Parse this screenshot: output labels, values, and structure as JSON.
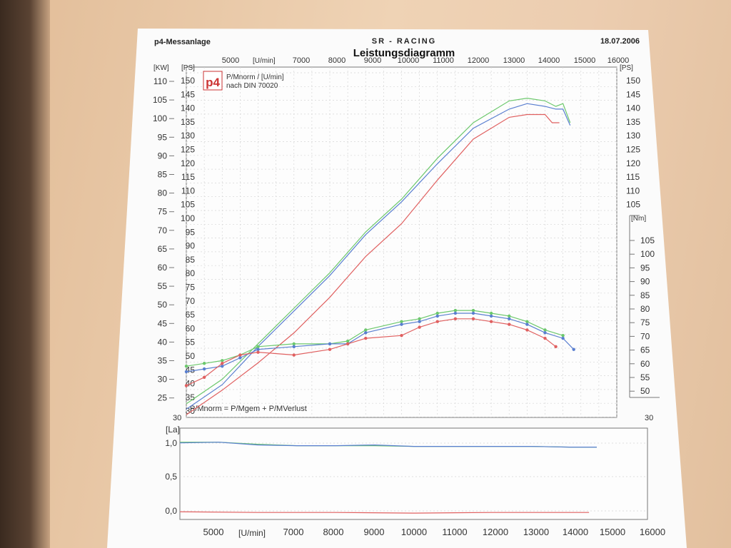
{
  "header": {
    "left": "p4-Messanlage",
    "center": "SR - RACING",
    "right": "18.07.2006",
    "title": "Leistungsdiagramm"
  },
  "logo": {
    "text": "p4"
  },
  "legend": {
    "line1": "P/Mnorm / [U/min]",
    "line2": "nach DIN 70020"
  },
  "formula": "P/Mnorm = P/Mgem + P/MVerlust",
  "axes": {
    "kw_unit": "[KW]",
    "ps_unit": "[PS]",
    "ps_right_unit": "[PS]",
    "nm_unit": "[Nm]",
    "rpm_unit": "[U/min]",
    "la_unit": "[La]",
    "corner_30": "30",
    "kw_ticks": [
      "110",
      "105",
      "100",
      "95",
      "90",
      "85",
      "80",
      "75",
      "70",
      "65",
      "60",
      "55",
      "50",
      "45",
      "40",
      "35",
      "30",
      "25"
    ],
    "ps_ticks": [
      "150",
      "145",
      "140",
      "135",
      "130",
      "125",
      "120",
      "115",
      "110",
      "105",
      "100",
      "95",
      "90",
      "85",
      "80",
      "75",
      "70",
      "65",
      "60",
      "55",
      "50",
      "45",
      "40",
      "35",
      "30"
    ],
    "ps_right_ticks": [
      "150",
      "145",
      "140",
      "135",
      "130",
      "125",
      "120",
      "115",
      "110",
      "105"
    ],
    "nm_ticks": [
      "105",
      "100",
      "95",
      "90",
      "85",
      "80",
      "75",
      "70",
      "65",
      "60",
      "55",
      "50"
    ],
    "nm_bottom": "30",
    "rpm_top_ticks": [
      "5000",
      "7000",
      "8000",
      "9000",
      "10000",
      "11000",
      "12000",
      "13000",
      "14000",
      "15000",
      "16000"
    ],
    "rpm_bottom_ticks": [
      "5000",
      "7000",
      "8000",
      "9000",
      "10000",
      "11000",
      "12000",
      "13000",
      "14000",
      "15000",
      "16000"
    ],
    "la_ticks": [
      "1,0",
      "0,5",
      "0,0"
    ]
  },
  "colors": {
    "green": "#6cc86c",
    "blue": "#5a7fd0",
    "red": "#e06060",
    "grid": "#d6d6d6",
    "axis": "#666666"
  },
  "chart_data": [
    {
      "type": "line",
      "title": "Leistungsdiagramm",
      "xlabel": "[U/min]",
      "ylabel": "[PS]",
      "xlim": [
        4000,
        16000
      ],
      "ylim": [
        30,
        155
      ],
      "series": [
        {
          "color": "green",
          "x": [
            4000,
            5000,
            6000,
            7000,
            8000,
            9000,
            10000,
            11000,
            12000,
            13000,
            13500,
            14000,
            14300,
            14500,
            14700
          ],
          "y": [
            35,
            44,
            57,
            70,
            83,
            98,
            110,
            125,
            138,
            146,
            147,
            146,
            144,
            145,
            138
          ]
        },
        {
          "color": "blue",
          "x": [
            4000,
            5000,
            6000,
            7000,
            8000,
            9000,
            10000,
            11000,
            12000,
            13000,
            13500,
            14000,
            14300,
            14500,
            14700
          ],
          "y": [
            33,
            42,
            56,
            69,
            82,
            97,
            109,
            123,
            136,
            143,
            145,
            144,
            143,
            143,
            137
          ]
        },
        {
          "color": "red",
          "x": [
            4000,
            5000,
            6000,
            7000,
            8000,
            9000,
            10000,
            11000,
            12000,
            13000,
            13500,
            14000,
            14200,
            14400
          ],
          "y": [
            31,
            40,
            50,
            61,
            74,
            89,
            101,
            117,
            132,
            140,
            141,
            141,
            138,
            138
          ]
        }
      ]
    },
    {
      "type": "line",
      "xlabel": "[U/min]",
      "ylabel": "[Nm]",
      "xlim": [
        4000,
        16000
      ],
      "ylim": [
        48,
        110
      ],
      "series": [
        {
          "color": "green",
          "x": [
            4000,
            4500,
            5000,
            5500,
            6000,
            7000,
            8000,
            8500,
            9000,
            10000,
            10500,
            11000,
            11500,
            12000,
            12500,
            13000,
            13500,
            14000,
            14500
          ],
          "y": [
            60,
            61,
            62,
            64,
            67,
            68,
            68,
            69,
            73,
            76,
            77,
            79,
            80,
            80,
            79,
            78,
            76,
            73,
            71
          ]
        },
        {
          "color": "blue",
          "x": [
            4000,
            4500,
            5000,
            5500,
            6000,
            7000,
            8000,
            8500,
            9000,
            10000,
            10500,
            11000,
            11500,
            12000,
            12500,
            13000,
            13500,
            14000,
            14500,
            14800
          ],
          "y": [
            58,
            59,
            60,
            63,
            66,
            67,
            68,
            68,
            72,
            75,
            76,
            78,
            79,
            79,
            78,
            77,
            75,
            72,
            70,
            66
          ]
        },
        {
          "color": "red",
          "x": [
            4000,
            4500,
            5000,
            5500,
            6000,
            7000,
            8000,
            8500,
            9000,
            10000,
            10500,
            11000,
            11500,
            12000,
            12500,
            13000,
            13500,
            14000,
            14300
          ],
          "y": [
            53,
            56,
            61,
            64,
            65,
            64,
            66,
            68,
            70,
            71,
            74,
            76,
            77,
            77,
            76,
            75,
            73,
            70,
            67
          ]
        }
      ]
    },
    {
      "type": "line",
      "xlabel": "[U/min]",
      "ylabel": "[La]",
      "xlim": [
        4000,
        16000
      ],
      "ylim": [
        -0.1,
        1.2
      ],
      "series": [
        {
          "color": "green",
          "x": [
            4000,
            5000,
            6000,
            7000,
            8000,
            9000,
            10000,
            11000,
            12000,
            13000,
            14000,
            14700
          ],
          "y": [
            1.0,
            1.0,
            0.97,
            0.95,
            0.95,
            0.95,
            0.94,
            0.94,
            0.94,
            0.94,
            0.93,
            0.93
          ]
        },
        {
          "color": "blue",
          "x": [
            4000,
            5000,
            6000,
            7000,
            8000,
            9000,
            10000,
            11000,
            12000,
            13000,
            14000,
            14700
          ],
          "y": [
            0.99,
            1.0,
            0.96,
            0.95,
            0.95,
            0.96,
            0.94,
            0.94,
            0.94,
            0.94,
            0.93,
            0.93
          ]
        },
        {
          "color": "red",
          "x": [
            4000,
            6000,
            8000,
            10000,
            12000,
            14000,
            14500
          ],
          "y": [
            0.01,
            0.0,
            0.0,
            -0.01,
            0.0,
            0.0,
            0.0
          ]
        }
      ]
    }
  ]
}
